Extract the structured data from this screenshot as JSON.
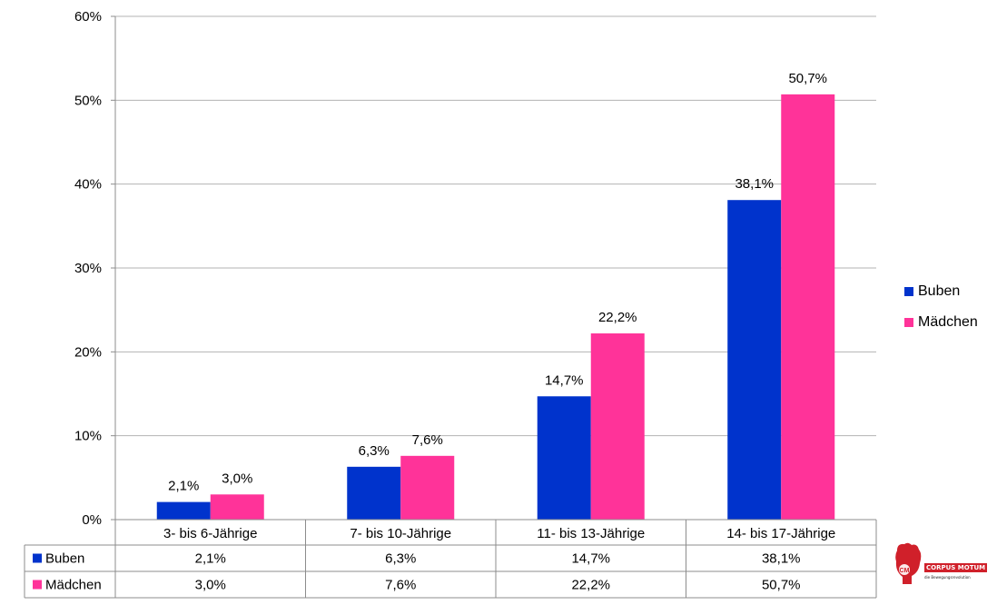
{
  "chart_data": {
    "type": "bar",
    "categories": [
      "3- bis 6-Jährige",
      "7- bis 10-Jährige",
      "11- bis 13-Jährige",
      "14- bis 17-Jährige"
    ],
    "series": [
      {
        "name": "Buben",
        "values": [
          2.1,
          6.3,
          14.7,
          38.1
        ],
        "labels": [
          "2,1%",
          "6,3%",
          "14,7%",
          "38,1%"
        ],
        "color": "#0033cc"
      },
      {
        "name": "Mädchen",
        "values": [
          3.0,
          7.6,
          22.2,
          50.7
        ],
        "labels": [
          "3,0%",
          "7,6%",
          "22,2%",
          "50,7%"
        ],
        "color": "#ff3399"
      }
    ],
    "yticks": [
      "0%",
      "10%",
      "20%",
      "30%",
      "40%",
      "50%",
      "60%"
    ],
    "ylim": [
      0,
      60
    ],
    "grid": true,
    "legend_position": "right",
    "data_table": true
  },
  "legend": {
    "buben": "Buben",
    "maedchen": "Mädchen"
  },
  "logo": {
    "name": "CORPUS MOTUM",
    "tagline": "die Bewegungsrevolution",
    "initials": "CM"
  }
}
